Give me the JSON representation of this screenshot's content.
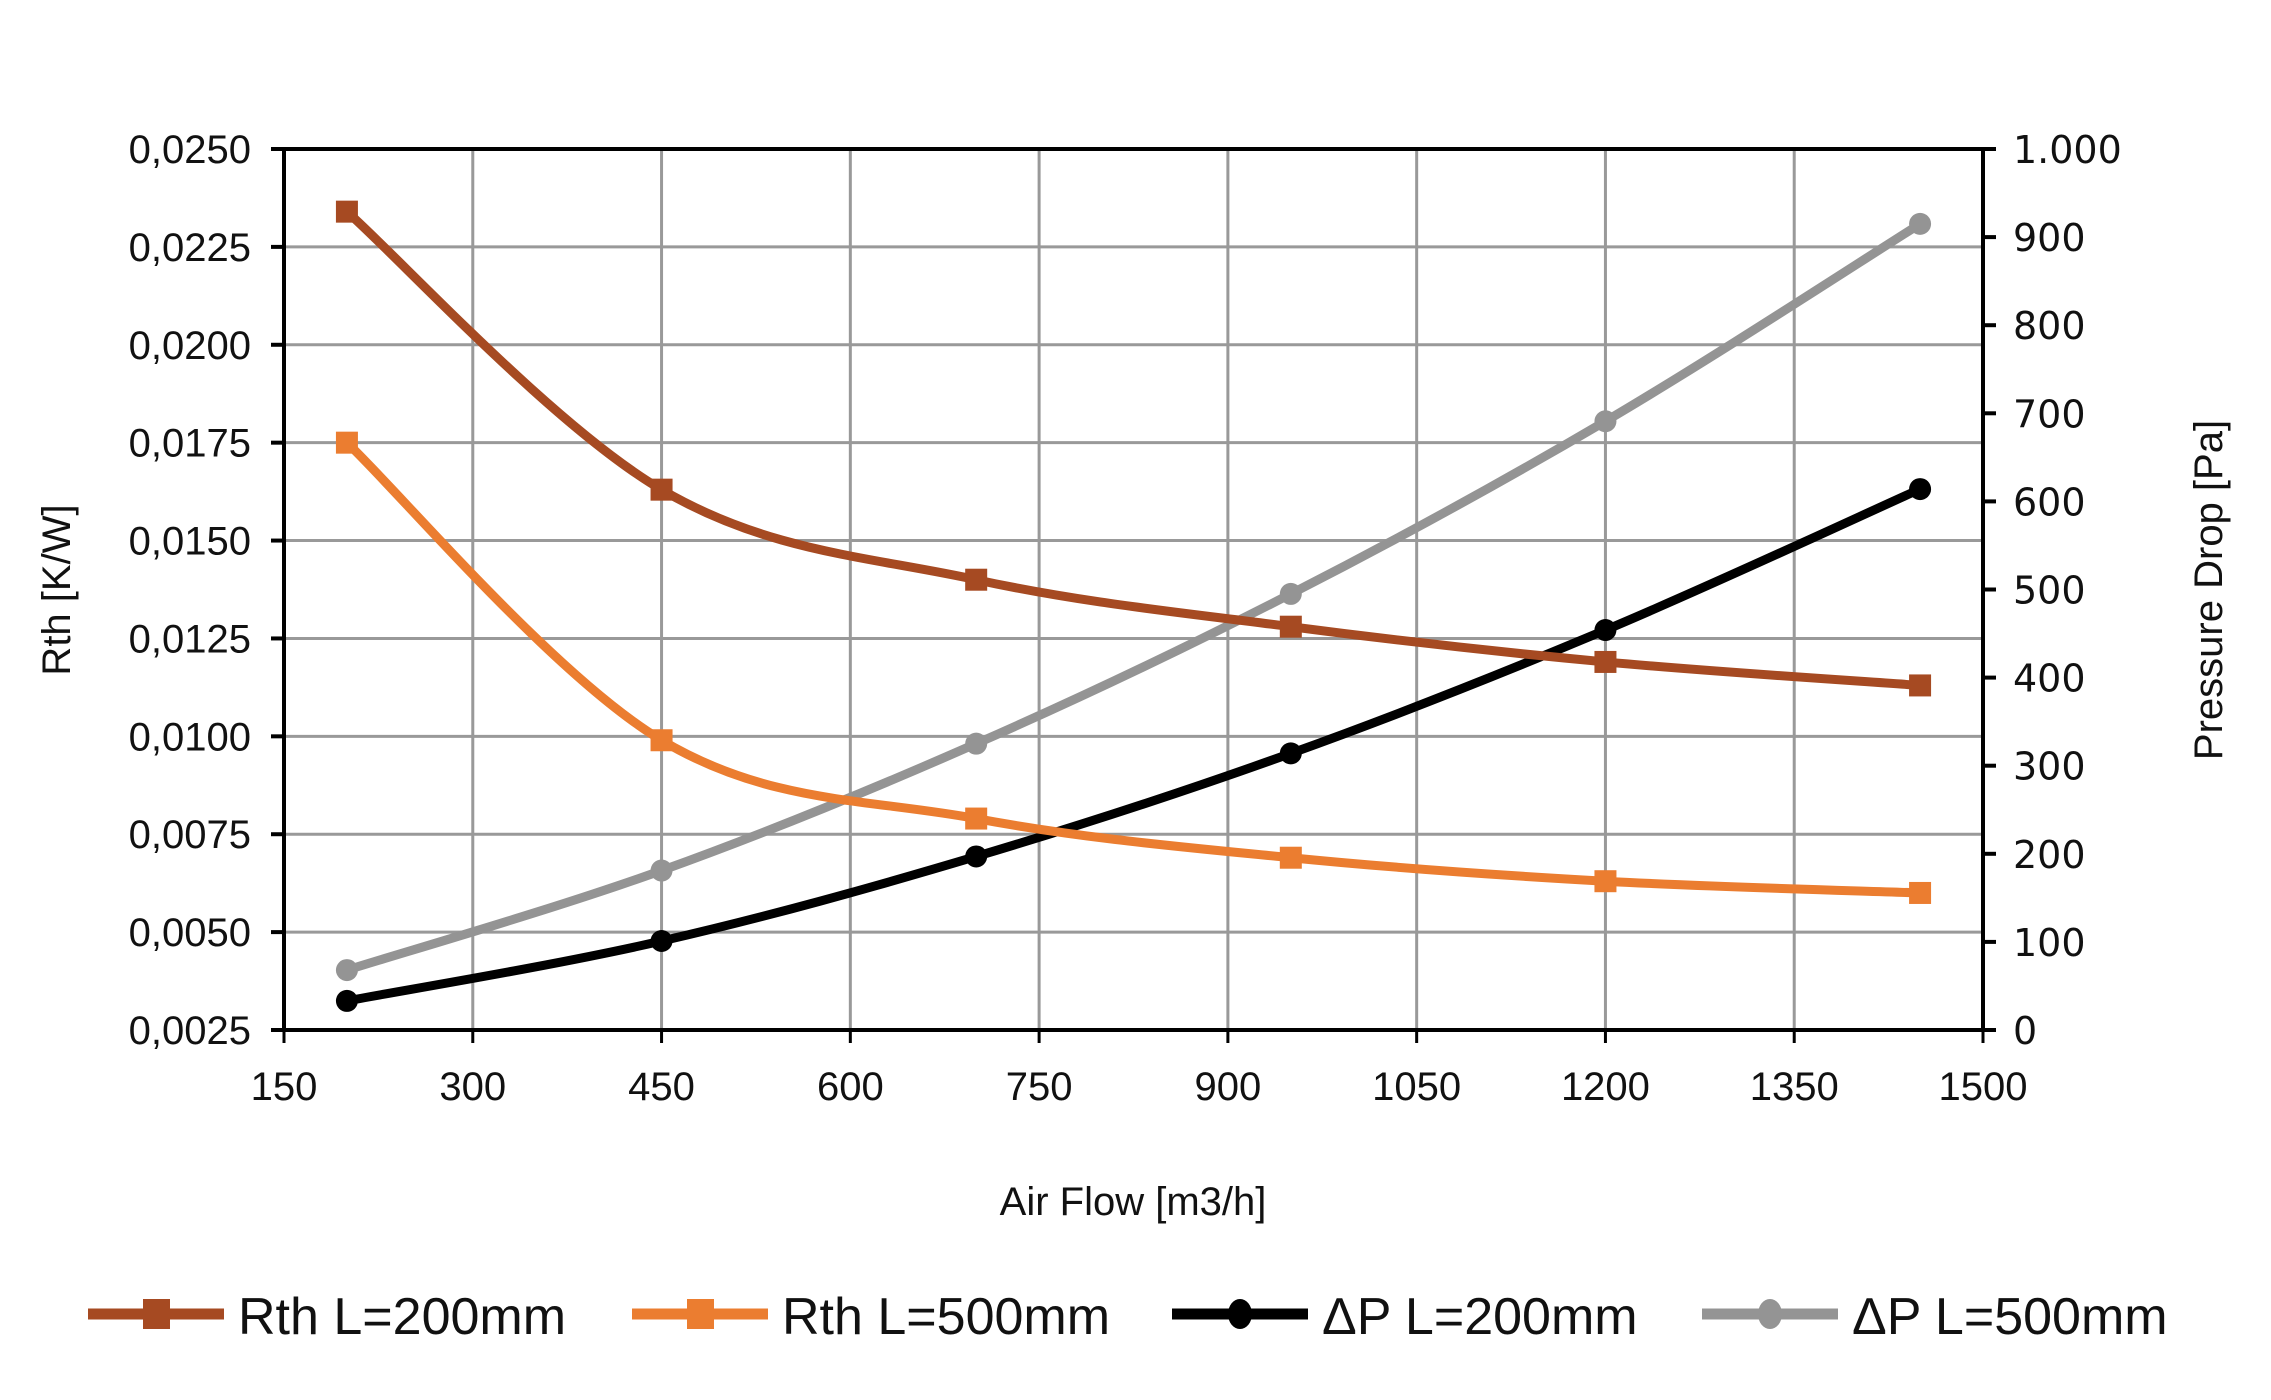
{
  "chart_data": {
    "type": "line",
    "title": "",
    "xlabel": "Air Flow [m3/h]",
    "ylabel": "Rth [K/W]",
    "y2label": "Pressure Drop [Pa]",
    "xlim": [
      150,
      1500
    ],
    "ylim": [
      0.0025,
      0.025
    ],
    "y2lim": [
      0,
      1000
    ],
    "grid": true,
    "legend_position": "bottom",
    "x_ticks": [
      "150",
      "300",
      "450",
      "600",
      "750",
      "900",
      "1050",
      "1200",
      "1350",
      "1500"
    ],
    "x_tick_values": [
      150,
      300,
      450,
      600,
      750,
      900,
      1050,
      1200,
      1350,
      1500
    ],
    "y_ticks": [
      "0,0025",
      "0,0050",
      "0,0075",
      "0,0100",
      "0,0125",
      "0,0150",
      "0,0175",
      "0,0200",
      "0,0225",
      "0,0250"
    ],
    "y_tick_values": [
      0.0025,
      0.005,
      0.0075,
      0.01,
      0.0125,
      0.015,
      0.0175,
      0.02,
      0.0225,
      0.025
    ],
    "y2_ticks": [
      "0",
      "100",
      "200",
      "300",
      "400",
      "500",
      "600",
      "700",
      "800",
      "900",
      "1.000"
    ],
    "y2_tick_values": [
      0,
      100,
      200,
      300,
      400,
      500,
      600,
      700,
      800,
      900,
      1000
    ],
    "x": [
      200,
      450,
      700,
      950,
      1200,
      1450
    ],
    "series": [
      {
        "name": "Rth L=200mm",
        "axis": "left",
        "marker": "square",
        "color": "#A64A22",
        "values": [
          0.0234,
          0.0163,
          0.014,
          0.0128,
          0.0119,
          0.0113
        ]
      },
      {
        "name": "Rth L=500mm",
        "axis": "left",
        "marker": "square",
        "color": "#EB7D30",
        "values": [
          0.0175,
          0.0099,
          0.0079,
          0.0069,
          0.0063,
          0.006
        ]
      },
      {
        "name": "ΔP L=200mm",
        "axis": "right",
        "marker": "circle",
        "color": "#000000",
        "values": [
          33,
          101,
          197,
          314,
          454,
          614
        ]
      },
      {
        "name": "ΔP L=500mm",
        "axis": "right",
        "marker": "circle",
        "color": "#949494",
        "values": [
          68,
          181,
          325,
          495,
          691,
          915
        ]
      }
    ]
  },
  "colors": {
    "grid": "#999999",
    "axis": "#000000"
  }
}
